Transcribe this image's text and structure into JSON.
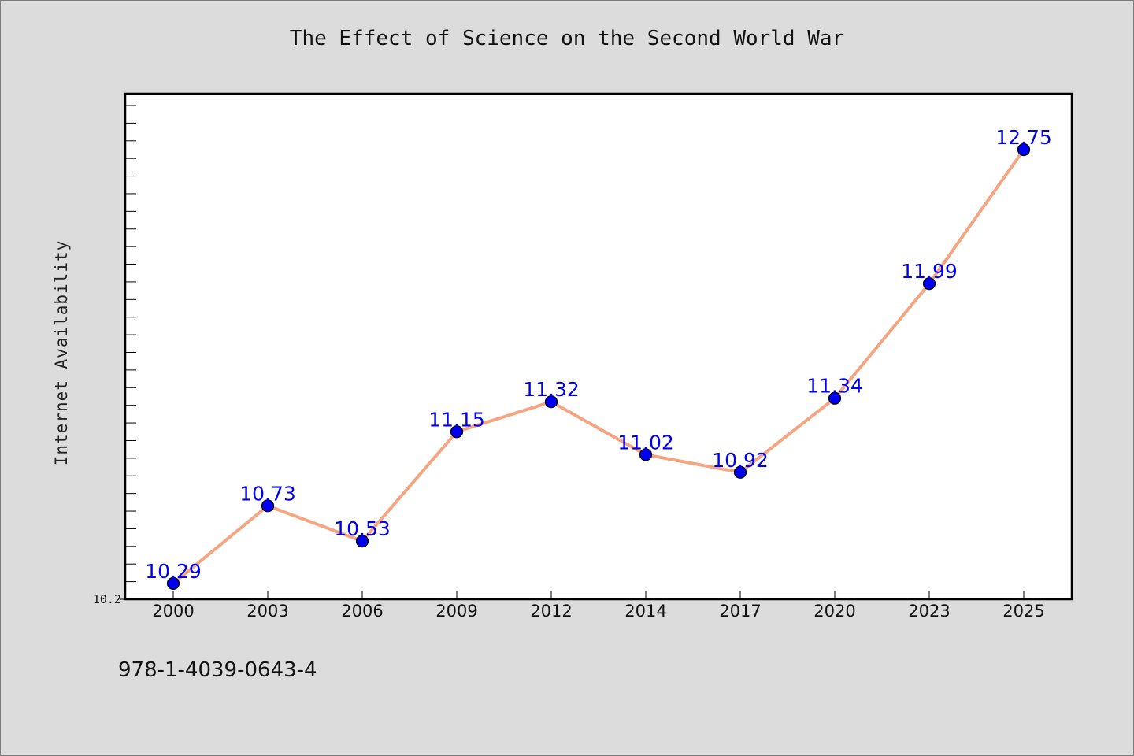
{
  "chart_data": {
    "type": "line",
    "title": "The Effect of Science on the Second World War",
    "xlabel": "",
    "ylabel": "Internet Availability",
    "categories": [
      "2000",
      "2003",
      "2006",
      "2009",
      "2012",
      "2014",
      "2017",
      "2020",
      "2023",
      "2025"
    ],
    "series": [
      {
        "values": [
          10.29,
          10.73,
          10.53,
          11.15,
          11.32,
          11.02,
          10.92,
          11.34,
          11.99,
          12.75
        ],
        "line_color": "#f4a582",
        "marker_color": "#0000ee",
        "label_color": "#0000ee"
      }
    ],
    "ylim": [
      10.2,
      13.0
    ],
    "y_tick_labels": [
      "10.2"
    ],
    "y_minor_tick_step": 0.1,
    "grid": false,
    "legend": "none",
    "data_labels": true
  },
  "annotation": {
    "isbn": "978-1-4039-0643-4"
  },
  "colors": {
    "background": "#dcdcdc",
    "plot_background": "#ffffff"
  }
}
